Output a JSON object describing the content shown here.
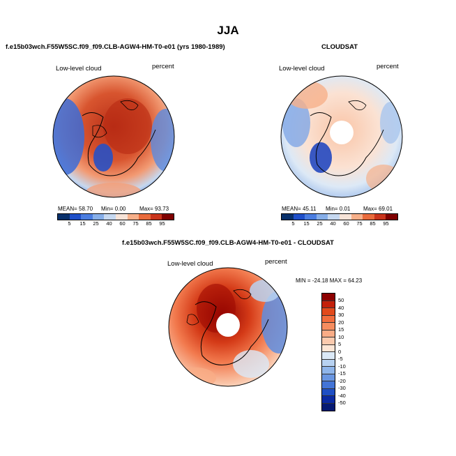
{
  "page_title": "JJA",
  "panels": [
    {
      "title": "f.e15b03wch.F55W5SC.f09_f09.CLB-AGW4-HM-T0-e01 (yrs 1980-1989)",
      "variable": "Low-level cloud",
      "units": "percent",
      "stats": {
        "mean": "MEAN=  58.70",
        "min": "Min=    0.00",
        "max": "Max=  93.73"
      }
    },
    {
      "title": "CLOUDSAT",
      "variable": "Low-level cloud",
      "units": "percent",
      "stats": {
        "mean": "MEAN=  45.11",
        "min": "Min=    0.01",
        "max": "Max=  69.01"
      }
    },
    {
      "title": "f.e15b03wch.F55W5SC.f09_f09.CLB-AGW4-HM-T0-e01 - CLOUDSAT",
      "variable": "Low-level cloud",
      "units": "percent",
      "minmax": "MIN = -24.18  MAX =   64.23"
    }
  ],
  "abs_colorbar": {
    "ticks": [
      "5",
      "15",
      "25",
      "40",
      "60",
      "75",
      "85",
      "95"
    ],
    "colors": [
      "#08306b",
      "#1f4fc9",
      "#4a7de0",
      "#86aee8",
      "#c6d8f0",
      "#f7e3d7",
      "#f7b08a",
      "#e96b3c",
      "#c9341c",
      "#7f0000"
    ]
  },
  "diff_colorbar": {
    "ticks": [
      "50",
      "40",
      "30",
      "20",
      "15",
      "10",
      "5",
      "0",
      "-5",
      "-10",
      "-15",
      "-20",
      "-30",
      "-40",
      "-50"
    ],
    "colors": [
      "#8c0000",
      "#c3200a",
      "#e24a1c",
      "#f26d3d",
      "#f68d5f",
      "#f9ac86",
      "#fbcaae",
      "#fde6d6",
      "#dbe9f7",
      "#b8d2f1",
      "#8fb5ea",
      "#6a96e1",
      "#4374d6",
      "#1f4fc4",
      "#0b2aa3",
      "#061a73"
    ]
  }
}
